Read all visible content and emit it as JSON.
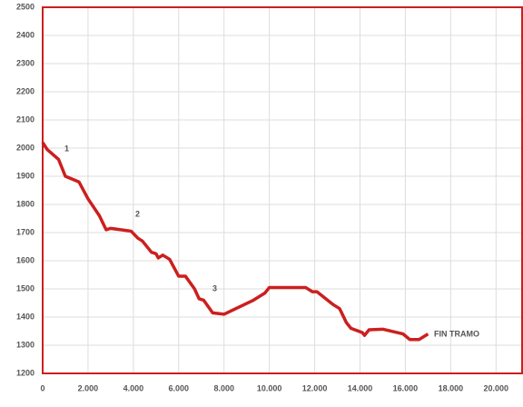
{
  "chart_data": {
    "type": "line",
    "x": [
      0,
      200,
      700,
      1000,
      1600,
      2000,
      2500,
      2800,
      3000,
      3900,
      4200,
      4400,
      4800,
      5000,
      5100,
      5300,
      5600,
      6000,
      6300,
      6700,
      6900,
      7100,
      7500,
      8000,
      9300,
      9800,
      10000,
      11600,
      11900,
      12100,
      12800,
      13100,
      13400,
      13600,
      14100,
      14200,
      14400,
      15000,
      15900,
      16200,
      16600,
      17000
    ],
    "series": [
      {
        "color": "#cc1f1f",
        "values": [
          2020,
          1995,
          1960,
          1900,
          1880,
          1820,
          1760,
          1710,
          1715,
          1705,
          1680,
          1670,
          1630,
          1625,
          1610,
          1620,
          1605,
          1545,
          1545,
          1500,
          1465,
          1460,
          1415,
          1410,
          1460,
          1485,
          1505,
          1505,
          1490,
          1490,
          1445,
          1430,
          1380,
          1360,
          1345,
          1335,
          1355,
          1357,
          1340,
          1320,
          1320,
          1340
        ]
      }
    ],
    "annotations": [
      "1",
      "2",
      "3",
      "FIN TRAMO"
    ],
    "xlim": [
      0,
      21150
    ],
    "ylim": [
      1200,
      2500
    ],
    "xticks": [
      0,
      {
        "value": 2000,
        "label": "2.000"
      },
      {
        "value": 4000,
        "label": "4.000"
      },
      {
        "value": 6000,
        "label": "6.000"
      },
      {
        "value": 8000,
        "label": "8.000"
      },
      {
        "value": 10000,
        "label": "10.000"
      },
      {
        "value": 12000,
        "label": "12.000"
      },
      {
        "value": 14000,
        "label": "14.000"
      },
      {
        "value": 16000,
        "label": "16.000"
      },
      {
        "value": 18000,
        "label": "18.000"
      },
      {
        "value": 20000,
        "label": "20.000"
      }
    ],
    "yticks": [
      1200,
      1300,
      1400,
      1500,
      1600,
      1700,
      1800,
      1900,
      2000,
      2100,
      2200,
      2300,
      2400,
      2500
    ],
    "grid": true,
    "frame_color": "#cc1f1f"
  }
}
